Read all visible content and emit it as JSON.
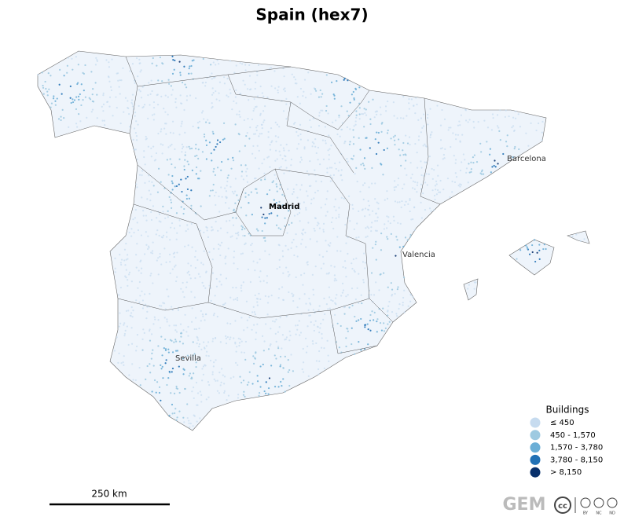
{
  "title": "Spain (hex7)",
  "cities": [
    {
      "name": "Barcelona"
    },
    {
      "name": "Madrid"
    },
    {
      "name": "Valencia"
    },
    {
      "name": "Sevilla"
    }
  ],
  "legend": {
    "title": "Buildings",
    "items": [
      {
        "label": "≤ 450",
        "color": "#c6dbef"
      },
      {
        "label": "450 - 1,570",
        "color": "#9ecae1"
      },
      {
        "label": "1,570 - 3,780",
        "color": "#6baed6"
      },
      {
        "label": "3,780 - 8,150",
        "color": "#2171b5"
      },
      {
        "label": "> 8,150",
        "color": "#08306b"
      }
    ]
  },
  "scale_bar": {
    "label": "250 km"
  },
  "credits": {
    "logo": "GEM",
    "license": "cc",
    "terms": [
      "BY",
      "NC",
      "ND"
    ]
  }
}
